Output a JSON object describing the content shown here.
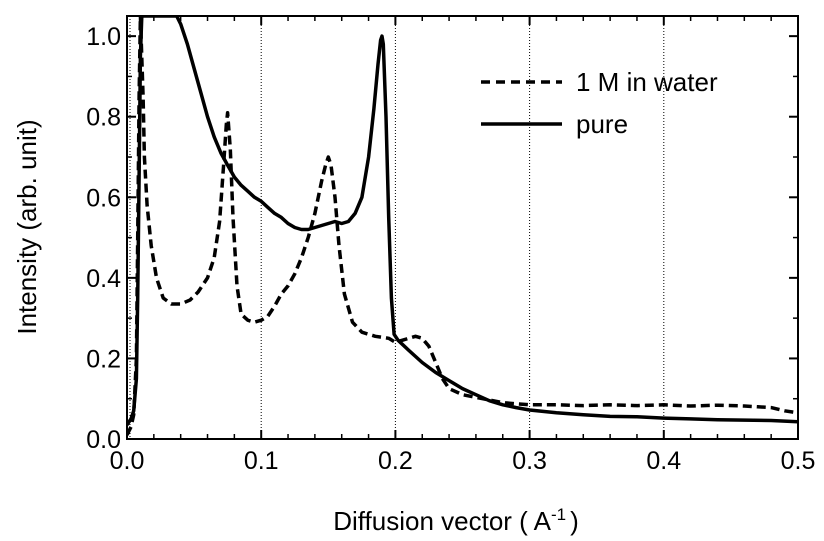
{
  "chart_data": {
    "type": "line",
    "xlabel": "Diffusion vector ( A",
    "xlabel_sup": "-1",
    "xlabel_close": ")",
    "ylabel": "Intensity (arb. unit)",
    "xlim": [
      0.0,
      0.5
    ],
    "ylim": [
      0.0,
      1.05
    ],
    "x_ticks": [
      0.0,
      0.1,
      0.2,
      0.3,
      0.4,
      0.5
    ],
    "x_tick_labels": [
      "0.0",
      "0.1",
      "0.2",
      "0.3",
      "0.4",
      "0.5"
    ],
    "y_ticks": [
      0.0,
      0.2,
      0.4,
      0.6,
      0.8,
      1.0
    ],
    "y_tick_labels": [
      "0.0",
      "0.2",
      "0.4",
      "0.6",
      "0.8",
      "1.0"
    ],
    "grid": "vertical dotted lines at x ticks",
    "legend_position": "top-right",
    "series": [
      {
        "name": "1 M in water",
        "style": "dashed",
        "color": "#000000",
        "points": [
          [
            0.0,
            0.01
          ],
          [
            0.003,
            0.03
          ],
          [
            0.005,
            0.06
          ],
          [
            0.007,
            0.2
          ],
          [
            0.008,
            0.5
          ],
          [
            0.009,
            0.85
          ],
          [
            0.01,
            1.05
          ],
          [
            0.012,
            0.85
          ],
          [
            0.013,
            0.7
          ],
          [
            0.015,
            0.58
          ],
          [
            0.018,
            0.48
          ],
          [
            0.022,
            0.4
          ],
          [
            0.027,
            0.35
          ],
          [
            0.033,
            0.335
          ],
          [
            0.04,
            0.335
          ],
          [
            0.047,
            0.345
          ],
          [
            0.053,
            0.365
          ],
          [
            0.06,
            0.4
          ],
          [
            0.065,
            0.45
          ],
          [
            0.069,
            0.54
          ],
          [
            0.072,
            0.68
          ],
          [
            0.074,
            0.78
          ],
          [
            0.075,
            0.81
          ],
          [
            0.077,
            0.72
          ],
          [
            0.079,
            0.55
          ],
          [
            0.082,
            0.38
          ],
          [
            0.085,
            0.31
          ],
          [
            0.09,
            0.295
          ],
          [
            0.095,
            0.29
          ],
          [
            0.1,
            0.295
          ],
          [
            0.105,
            0.305
          ],
          [
            0.11,
            0.33
          ],
          [
            0.115,
            0.36
          ],
          [
            0.12,
            0.38
          ],
          [
            0.125,
            0.41
          ],
          [
            0.13,
            0.45
          ],
          [
            0.135,
            0.5
          ],
          [
            0.14,
            0.56
          ],
          [
            0.145,
            0.64
          ],
          [
            0.148,
            0.68
          ],
          [
            0.15,
            0.7
          ],
          [
            0.152,
            0.68
          ],
          [
            0.155,
            0.6
          ],
          [
            0.158,
            0.48
          ],
          [
            0.162,
            0.36
          ],
          [
            0.168,
            0.29
          ],
          [
            0.175,
            0.265
          ],
          [
            0.185,
            0.255
          ],
          [
            0.195,
            0.25
          ],
          [
            0.2,
            0.24
          ],
          [
            0.205,
            0.245
          ],
          [
            0.21,
            0.25
          ],
          [
            0.215,
            0.255
          ],
          [
            0.22,
            0.25
          ],
          [
            0.225,
            0.23
          ],
          [
            0.23,
            0.19
          ],
          [
            0.235,
            0.15
          ],
          [
            0.24,
            0.125
          ],
          [
            0.25,
            0.11
          ],
          [
            0.265,
            0.1
          ],
          [
            0.28,
            0.09
          ],
          [
            0.3,
            0.085
          ],
          [
            0.32,
            0.085
          ],
          [
            0.34,
            0.083
          ],
          [
            0.36,
            0.085
          ],
          [
            0.38,
            0.083
          ],
          [
            0.4,
            0.085
          ],
          [
            0.42,
            0.082
          ],
          [
            0.44,
            0.084
          ],
          [
            0.46,
            0.082
          ],
          [
            0.47,
            0.08
          ],
          [
            0.48,
            0.078
          ],
          [
            0.49,
            0.07
          ],
          [
            0.5,
            0.065
          ]
        ]
      },
      {
        "name": "pure",
        "style": "solid",
        "color": "#000000",
        "points": [
          [
            0.0,
            0.035
          ],
          [
            0.003,
            0.05
          ],
          [
            0.005,
            0.07
          ],
          [
            0.007,
            0.15
          ],
          [
            0.008,
            0.35
          ],
          [
            0.009,
            0.65
          ],
          [
            0.01,
            0.95
          ],
          [
            0.011,
            1.05
          ],
          [
            0.037,
            1.05
          ],
          [
            0.04,
            1.03
          ],
          [
            0.045,
            0.98
          ],
          [
            0.05,
            0.92
          ],
          [
            0.055,
            0.86
          ],
          [
            0.06,
            0.8
          ],
          [
            0.065,
            0.75
          ],
          [
            0.07,
            0.71
          ],
          [
            0.075,
            0.68
          ],
          [
            0.08,
            0.65
          ],
          [
            0.085,
            0.63
          ],
          [
            0.09,
            0.615
          ],
          [
            0.095,
            0.6
          ],
          [
            0.1,
            0.59
          ],
          [
            0.105,
            0.575
          ],
          [
            0.11,
            0.56
          ],
          [
            0.115,
            0.55
          ],
          [
            0.12,
            0.535
          ],
          [
            0.125,
            0.525
          ],
          [
            0.13,
            0.52
          ],
          [
            0.135,
            0.52
          ],
          [
            0.14,
            0.525
          ],
          [
            0.145,
            0.53
          ],
          [
            0.15,
            0.535
          ],
          [
            0.155,
            0.54
          ],
          [
            0.16,
            0.535
          ],
          [
            0.165,
            0.54
          ],
          [
            0.17,
            0.56
          ],
          [
            0.175,
            0.6
          ],
          [
            0.18,
            0.7
          ],
          [
            0.184,
            0.82
          ],
          [
            0.187,
            0.93
          ],
          [
            0.189,
            0.99
          ],
          [
            0.19,
            1.0
          ],
          [
            0.191,
            0.98
          ],
          [
            0.193,
            0.8
          ],
          [
            0.195,
            0.55
          ],
          [
            0.197,
            0.35
          ],
          [
            0.199,
            0.26
          ],
          [
            0.202,
            0.245
          ],
          [
            0.21,
            0.22
          ],
          [
            0.22,
            0.19
          ],
          [
            0.23,
            0.165
          ],
          [
            0.24,
            0.145
          ],
          [
            0.25,
            0.125
          ],
          [
            0.26,
            0.11
          ],
          [
            0.27,
            0.095
          ],
          [
            0.28,
            0.085
          ],
          [
            0.29,
            0.078
          ],
          [
            0.3,
            0.072
          ],
          [
            0.32,
            0.065
          ],
          [
            0.34,
            0.06
          ],
          [
            0.36,
            0.056
          ],
          [
            0.38,
            0.055
          ],
          [
            0.4,
            0.052
          ],
          [
            0.42,
            0.05
          ],
          [
            0.44,
            0.048
          ],
          [
            0.46,
            0.047
          ],
          [
            0.48,
            0.046
          ],
          [
            0.5,
            0.043
          ]
        ]
      }
    ]
  }
}
